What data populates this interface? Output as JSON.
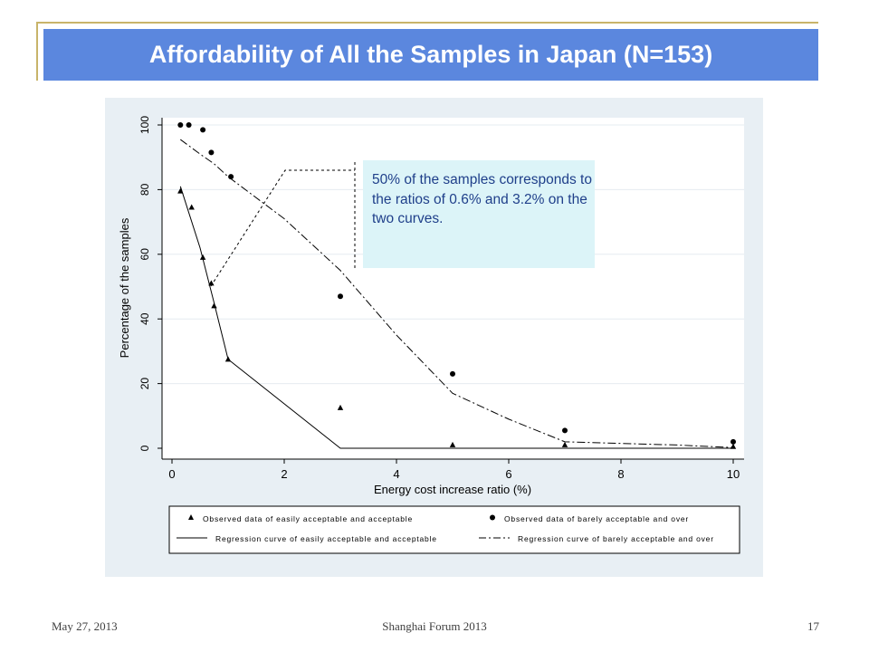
{
  "slide": {
    "title": "Affordability of All the Samples in Japan (N=153)",
    "footer_date": "May 27, 2013",
    "footer_event": "Shanghai Forum 2013",
    "page_number": "17"
  },
  "callout": {
    "text": "50% of the samples corresponds to the ratios of 0.6% and 3.2% on the two curves."
  },
  "colors": {
    "title_bar": "#5b87de",
    "accent_line": "#c8b46a",
    "chart_panel": "#e8eff4",
    "plot_area": "#ffffff",
    "callout_bg": "#dcf4f8",
    "callout_text": "#1f3f8a"
  },
  "chart_data": {
    "type": "scatter",
    "xlabel": "Energy cost increase ratio (%)",
    "ylabel": "Percentage of the samples",
    "xlim": [
      0,
      10
    ],
    "ylim": [
      0,
      100
    ],
    "x_ticks": [
      "0",
      "2",
      "4",
      "6",
      "8",
      "10"
    ],
    "y_ticks": [
      "0",
      "20",
      "40",
      "60",
      "80",
      "100"
    ],
    "grid": true,
    "legend_position": "bottom",
    "series": [
      {
        "name": "Observed data of easily acceptable and acceptable",
        "kind": "scatter",
        "marker": "triangle",
        "x": [
          0.15,
          0.35,
          0.55,
          0.7,
          0.75,
          1.0,
          3.0,
          5.0,
          7.0,
          10.0
        ],
        "y": [
          79.5,
          74.5,
          59,
          51,
          44,
          27.5,
          12.5,
          1,
          1,
          0.5
        ]
      },
      {
        "name": "Observed data of barely acceptable and over",
        "kind": "scatter",
        "marker": "circle",
        "x": [
          0.15,
          0.3,
          0.55,
          0.7,
          1.05,
          3.0,
          5.0,
          7.0,
          10.0
        ],
        "y": [
          100,
          100,
          98.5,
          91.5,
          84,
          47,
          23,
          5.5,
          2
        ]
      },
      {
        "name": "Regression curve of easily acceptable and acceptable",
        "kind": "line",
        "dash": "solid",
        "x": [
          0.15,
          0.5,
          0.75,
          1.0,
          3.0,
          5.0,
          7.0,
          10.0
        ],
        "y": [
          81,
          62,
          45,
          27.5,
          0,
          0,
          0,
          0
        ]
      },
      {
        "name": "Regression curve of barely acceptable and over",
        "kind": "line",
        "dash": "dashdot",
        "x": [
          0.15,
          0.5,
          0.75,
          1.0,
          2.0,
          3.0,
          4.0,
          5.0,
          6.0,
          7.0,
          8.0,
          9.0,
          10.0
        ],
        "y": [
          95.5,
          91,
          88,
          84,
          71,
          55,
          35,
          17,
          9,
          2,
          1.5,
          1,
          0.2
        ]
      }
    ]
  }
}
